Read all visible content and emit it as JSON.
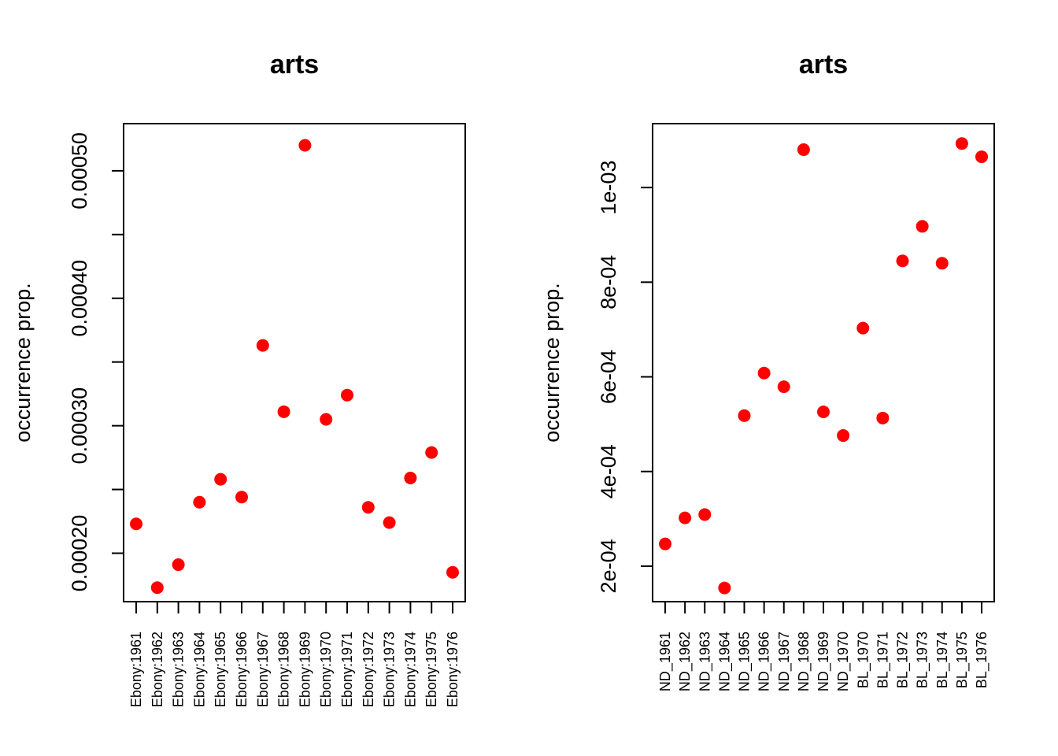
{
  "chart_data": [
    {
      "type": "scatter",
      "title": "arts",
      "xlabel": "",
      "ylabel": "occurrence prop.",
      "grid": false,
      "point_color": "#ff0000",
      "ylim": [
        0.000162,
        0.000537
      ],
      "yticks": [
        0.0002,
        0.00025,
        0.0003,
        0.00035,
        0.0004,
        0.00045,
        0.0005
      ],
      "ytick_labels": [
        "0.00020",
        "",
        "0.00030",
        "",
        "0.00040",
        "",
        "0.00050"
      ],
      "categories": [
        "Ebony:1961",
        "Ebony:1962",
        "Ebony:1963",
        "Ebony:1964",
        "Ebony:1965",
        "Ebony:1966",
        "Ebony:1967",
        "Ebony:1968",
        "Ebony:1969",
        "Ebony:1970",
        "Ebony:1971",
        "Ebony:1972",
        "Ebony:1973",
        "Ebony:1974",
        "Ebony:1975",
        "Ebony:1976"
      ],
      "values": [
        0.000223,
        0.000173,
        0.000191,
        0.00024,
        0.000258,
        0.000244,
        0.000363,
        0.000311,
        0.00052,
        0.000305,
        0.000324,
        0.000236,
        0.000224,
        0.000259,
        0.000279,
        0.000185
      ]
    },
    {
      "type": "scatter",
      "title": "arts",
      "xlabel": "",
      "ylabel": "occurrence prop.",
      "grid": false,
      "point_color": "#ff0000",
      "ylim": [
        0.000125,
        0.001135
      ],
      "yticks": [
        0.0002,
        0.0004,
        0.0006,
        0.0008,
        0.001
      ],
      "ytick_labels": [
        "2e-04",
        "4e-04",
        "6e-04",
        "8e-04",
        "1e-03"
      ],
      "categories": [
        "ND_1961",
        "ND_1962",
        "ND_1963",
        "ND_1964",
        "ND_1965",
        "ND_1966",
        "ND_1967",
        "ND_1968",
        "ND_1969",
        "ND_1970",
        "BL_1970",
        "BL_1971",
        "BL_1972",
        "BL_1973",
        "BL_1974",
        "BL_1975",
        "BL_1976"
      ],
      "values": [
        0.000247,
        0.000302,
        0.000309,
        0.000154,
        0.000518,
        0.000608,
        0.000579,
        0.00108,
        0.000526,
        0.000476,
        0.000703,
        0.000513,
        0.000845,
        0.000918,
        0.00084,
        0.001093,
        0.001065
      ]
    }
  ]
}
